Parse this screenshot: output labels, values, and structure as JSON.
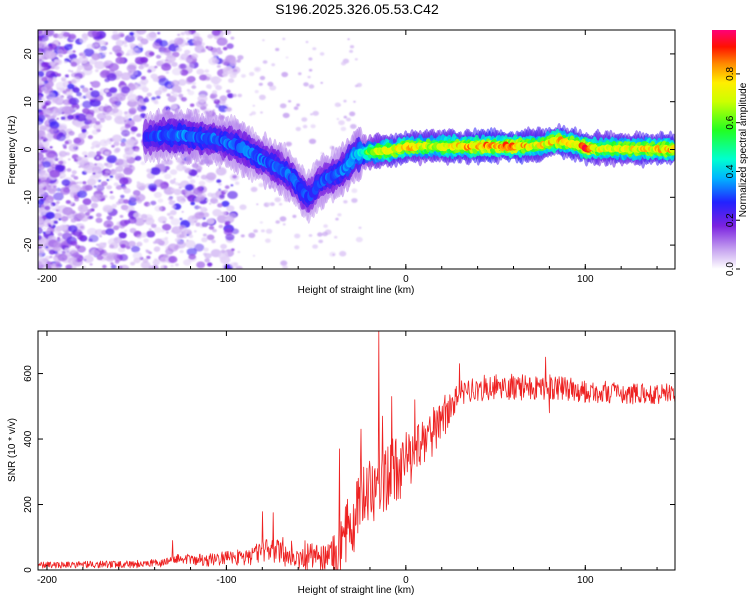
{
  "title": "S196.2025.326.05.53.C42",
  "chart_data": [
    {
      "type": "heatmap",
      "name": "spectrogram",
      "xlabel": "Height of straight line (km)",
      "ylabel": "Frequency (Hz)",
      "xlim": [
        -205,
        150
      ],
      "ylim": [
        -25,
        25
      ],
      "xticks": [
        -200,
        -100,
        0,
        100
      ],
      "yticks": [
        -20,
        -10,
        0,
        10,
        20
      ],
      "colorbar": {
        "label": "Normalized spectral amplitude",
        "ticks": [
          "0.0",
          "0.2",
          "0.4",
          "0.6",
          "0.8"
        ],
        "tick_values": [
          0.0,
          0.2,
          0.4,
          0.6,
          0.8
        ],
        "range": [
          0,
          0.98
        ]
      },
      "ridge": {
        "x": [
          -145,
          -135,
          -125,
          -115,
          -105,
          -95,
          -85,
          -75,
          -68,
          -62,
          -58,
          -55,
          -52,
          -48,
          -44,
          -40,
          -36,
          -32,
          -28,
          -24,
          -20,
          -15,
          -10,
          -5,
          0,
          10,
          20,
          40,
          60,
          75,
          80,
          85,
          90,
          95,
          100,
          110,
          130,
          150
        ],
        "y": [
          2.5,
          3,
          3,
          2.5,
          2,
          1,
          -1,
          -3,
          -4.5,
          -6.5,
          -8.5,
          -10,
          -9,
          -7,
          -6,
          -5.5,
          -4.5,
          -3,
          -1,
          -0.8,
          -0.5,
          -0.4,
          -0.2,
          0,
          0.5,
          0.6,
          0.6,
          0.7,
          0.7,
          0.8,
          1.5,
          2,
          1.5,
          1,
          0.3,
          0.2,
          0.1,
          0.1
        ]
      },
      "amplitude": {
        "x": [
          -145,
          -130,
          -110,
          -90,
          -70,
          -55,
          -40,
          -25,
          -20,
          -10,
          0,
          10,
          20,
          40,
          60,
          75,
          85,
          95,
          100,
          110,
          150
        ],
        "v": [
          0.28,
          0.35,
          0.32,
          0.33,
          0.33,
          0.3,
          0.32,
          0.42,
          0.65,
          0.75,
          0.8,
          0.72,
          0.75,
          0.85,
          0.85,
          0.75,
          0.82,
          0.75,
          0.9,
          0.72,
          0.8
        ]
      }
    },
    {
      "type": "line",
      "name": "snr",
      "xlabel": "Height of straight line (km)",
      "ylabel": "SNR (10 * v/v)",
      "xlim": [
        -205,
        150
      ],
      "ylim": [
        0,
        730
      ],
      "xticks": [
        -200,
        -100,
        0,
        100
      ],
      "yticks": [
        0,
        200,
        400,
        600
      ],
      "color": "#ee2222",
      "envelope": {
        "x": [
          -205,
          -150,
          -135,
          -130,
          -110,
          -90,
          -80,
          -70,
          -60,
          -45,
          -38,
          -35,
          -30,
          -25,
          -20,
          -15,
          -10,
          -5,
          0,
          5,
          10,
          15,
          20,
          25,
          30,
          40,
          50,
          60,
          70,
          80,
          100,
          120,
          150
        ],
        "y": [
          15,
          18,
          22,
          35,
          30,
          40,
          55,
          60,
          50,
          35,
          40,
          90,
          140,
          200,
          230,
          260,
          290,
          310,
          330,
          350,
          380,
          420,
          460,
          510,
          540,
          555,
          560,
          560,
          555,
          560,
          545,
          540,
          540
        ]
      },
      "noise": {
        "x": [
          -205,
          -130,
          -90,
          -70,
          -45,
          -38,
          -30,
          -20,
          -10,
          0,
          20,
          30,
          60,
          100,
          150
        ],
        "y": [
          6,
          8,
          16,
          30,
          25,
          50,
          70,
          75,
          70,
          60,
          45,
          25,
          25,
          22,
          20
        ]
      },
      "spikes": [
        {
          "x": -130,
          "y": 90
        },
        {
          "x": -80,
          "y": 178
        },
        {
          "x": -74,
          "y": 175
        },
        {
          "x": -37,
          "y": 370
        },
        {
          "x": -25,
          "y": 430
        },
        {
          "x": -15,
          "y": 730
        },
        {
          "x": -13,
          "y": 470
        },
        {
          "x": -8,
          "y": 530
        },
        {
          "x": 5,
          "y": 520
        },
        {
          "x": 10,
          "y": 440
        },
        {
          "x": 30,
          "y": 630
        },
        {
          "x": 78,
          "y": 650
        },
        {
          "x": 80,
          "y": 480
        }
      ]
    }
  ]
}
